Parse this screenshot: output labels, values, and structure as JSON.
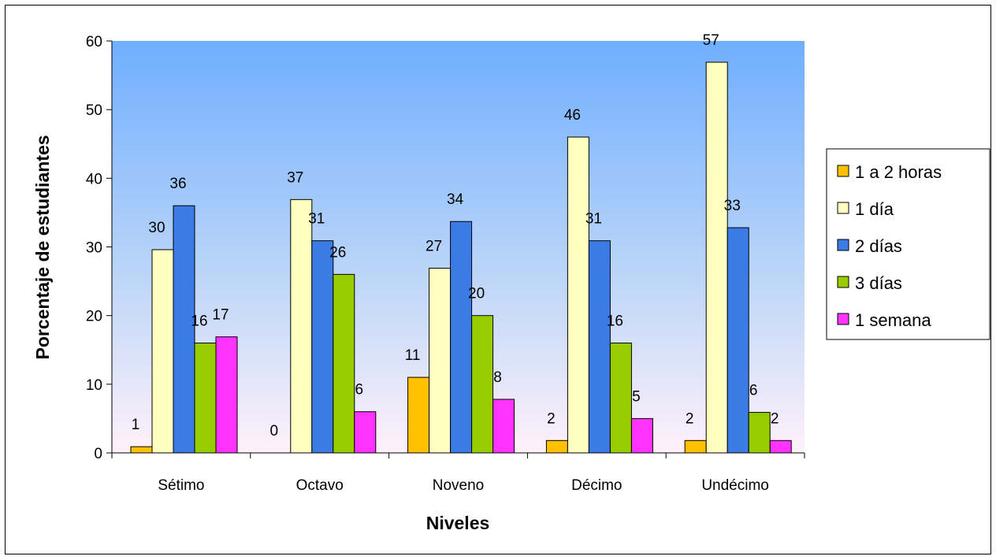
{
  "chart_data": {
    "type": "bar",
    "title": "",
    "xlabel": "Niveles",
    "ylabel": "Porcentaje de estudiantes",
    "ylim": [
      0,
      60
    ],
    "yticks": [
      0,
      10,
      20,
      30,
      40,
      50,
      60
    ],
    "grid": false,
    "legend_position": "right",
    "categories": [
      "Sétimo",
      "Octavo",
      "Noveno",
      "Décimo",
      "Undécimo"
    ],
    "series": [
      {
        "name": "1 a 2 horas",
        "color": "#FFC000",
        "values": [
          1,
          0,
          11,
          2,
          2
        ]
      },
      {
        "name": "1 día",
        "color": "#FFFFC0",
        "values": [
          30,
          37,
          27,
          46,
          57
        ]
      },
      {
        "name": "2 días",
        "color": "#3B7BE6",
        "values": [
          36,
          31,
          34,
          31,
          33
        ]
      },
      {
        "name": "3 días",
        "color": "#99CC00",
        "values": [
          16,
          26,
          20,
          16,
          6
        ]
      },
      {
        "name": "1 semana",
        "color": "#FF33FF",
        "values": [
          17,
          6,
          8,
          5,
          2
        ]
      }
    ],
    "plotted_values": [
      [
        0.9,
        0,
        11,
        1.8,
        1.8
      ],
      [
        29.6,
        36.9,
        26.9,
        46,
        56.9
      ],
      [
        36,
        30.9,
        33.7,
        30.9,
        32.8
      ],
      [
        16,
        26,
        20,
        16,
        5.9
      ],
      [
        16.9,
        6,
        7.8,
        5,
        1.8
      ]
    ]
  }
}
